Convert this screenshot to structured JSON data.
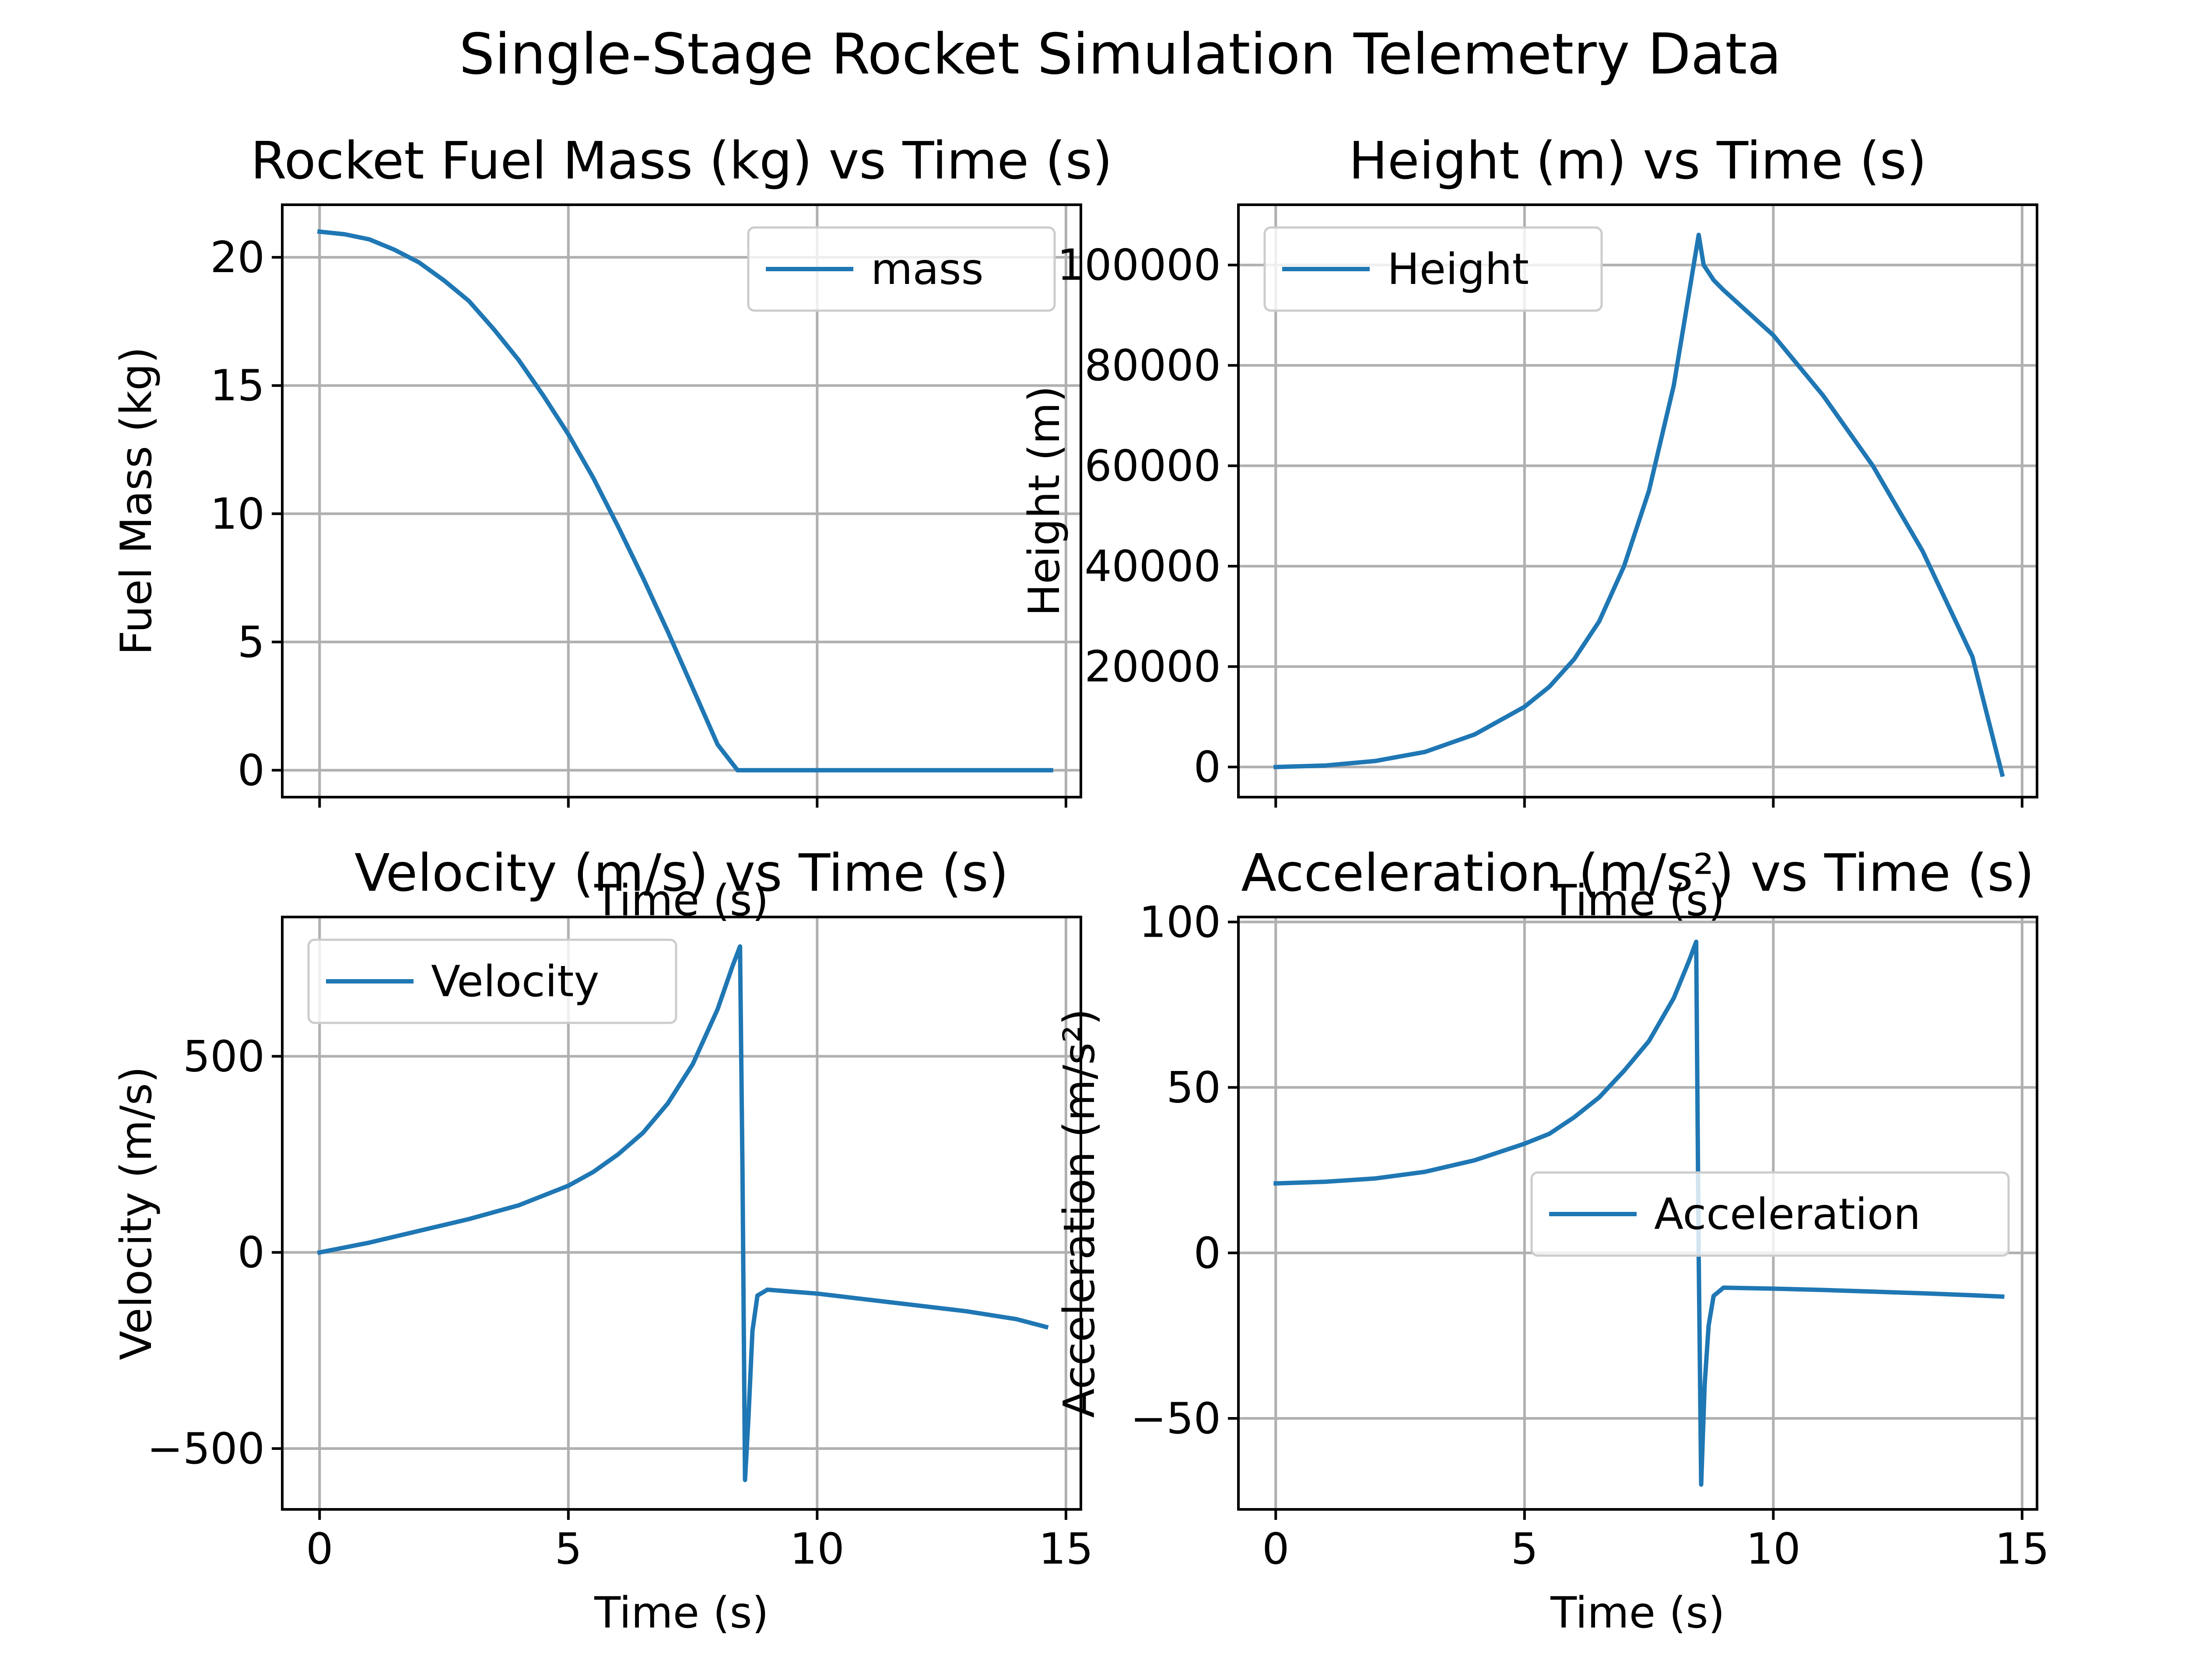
{
  "figure": {
    "suptitle": "Single-Stage Rocket Simulation Telemetry Data",
    "line_color": "#1f77b4"
  },
  "chart_data": [
    {
      "type": "line",
      "title": "Rocket Fuel Mass (kg) vs Time (s)",
      "xlabel": "Time (s)",
      "ylabel": "Fuel Mass (kg)",
      "xlim": [
        -0.75,
        15.3
      ],
      "ylim": [
        -1.05,
        22.05
      ],
      "xticks": [
        0,
        5,
        10,
        15
      ],
      "xticklabels": [
        "",
        "",
        "",
        ""
      ],
      "yticks": [
        0,
        5,
        10,
        15,
        20
      ],
      "yticklabels": [
        "0",
        "5",
        "10",
        "15",
        "20"
      ],
      "grid": true,
      "legend": "upper right",
      "series": [
        {
          "name": "mass",
          "x": [
            0,
            0.5,
            1,
            1.5,
            2,
            2.5,
            3,
            3.5,
            4,
            4.5,
            5,
            5.5,
            6,
            6.5,
            7,
            7.5,
            8,
            8.4,
            8.5,
            10,
            12,
            14,
            14.7
          ],
          "y": [
            21.0,
            20.9,
            20.7,
            20.3,
            19.8,
            19.1,
            18.3,
            17.2,
            16.0,
            14.6,
            13.1,
            11.4,
            9.5,
            7.5,
            5.4,
            3.2,
            1.0,
            0.0,
            0.0,
            0.0,
            0.0,
            0.0,
            0.0
          ]
        }
      ]
    },
    {
      "type": "line",
      "title": "Height (m) vs Time (s)",
      "xlabel": "Time (s)",
      "ylabel": "Height (m)",
      "xlim": [
        -0.75,
        15.3
      ],
      "ylim": [
        -6000,
        112000
      ],
      "xticks": [
        0,
        5,
        10,
        15
      ],
      "xticklabels": [
        "",
        "",
        "",
        ""
      ],
      "yticks": [
        0,
        20000,
        40000,
        60000,
        80000,
        100000
      ],
      "yticklabels": [
        "0",
        "20000",
        "40000",
        "60000",
        "80000",
        "100000"
      ],
      "grid": true,
      "legend": "upper left",
      "series": [
        {
          "name": "Height",
          "x": [
            0,
            1,
            2,
            3,
            4,
            5,
            5.5,
            6,
            6.5,
            7,
            7.5,
            8,
            8.2,
            8.4,
            8.5,
            8.6,
            8.8,
            9,
            10,
            11,
            12,
            13,
            14,
            14.6
          ],
          "y": [
            0,
            300,
            1200,
            3000,
            6500,
            12000,
            16000,
            21500,
            29000,
            40000,
            55000,
            76000,
            88000,
            100000,
            106000,
            100000,
            97000,
            95000,
            86000,
            74000,
            60000,
            43000,
            22000,
            -1500
          ]
        }
      ]
    },
    {
      "type": "line",
      "title": "Velocity (m/s) vs Time (s)",
      "xlabel": "Time (s)",
      "ylabel": "Velocity (m/s)",
      "xlim": [
        -0.75,
        15.3
      ],
      "ylim": [
        -655,
        855
      ],
      "xticks": [
        0,
        5,
        10,
        15
      ],
      "xticklabels": [
        "0",
        "5",
        "10",
        "15"
      ],
      "yticks": [
        -500,
        0,
        500
      ],
      "yticklabels": [
        "−500",
        "0",
        "500"
      ],
      "grid": true,
      "legend": "upper left",
      "series": [
        {
          "name": "Velocity",
          "x": [
            0,
            1,
            2,
            3,
            4,
            5,
            5.5,
            6,
            6.5,
            7,
            7.5,
            8,
            8.3,
            8.45,
            8.5,
            8.55,
            8.62,
            8.7,
            8.8,
            9,
            10,
            11,
            12,
            13,
            14,
            14.6
          ],
          "y": [
            0,
            25,
            55,
            85,
            120,
            170,
            205,
            250,
            305,
            380,
            480,
            620,
            730,
            780,
            200,
            -580,
            -420,
            -200,
            -110,
            -95,
            -105,
            -120,
            -135,
            -150,
            -170,
            -190
          ]
        }
      ]
    },
    {
      "type": "line",
      "title": "Acceleration (m/s²) vs Time (s)",
      "xlabel": "Time (s)",
      "ylabel": "Acceleration (m/s²)",
      "xlim": [
        -0.75,
        15.3
      ],
      "ylim": [
        -77.5,
        101.5
      ],
      "xticks": [
        0,
        5,
        10,
        15
      ],
      "xticklabels": [
        "0",
        "5",
        "10",
        "15"
      ],
      "yticks": [
        -50,
        0,
        50,
        100
      ],
      "yticklabels": [
        "−50",
        "0",
        "50",
        "100"
      ],
      "grid": true,
      "legend": "center right",
      "series": [
        {
          "name": "Acceleration",
          "x": [
            0,
            1,
            2,
            3,
            4,
            5,
            5.5,
            6,
            6.5,
            7,
            7.5,
            8,
            8.3,
            8.45,
            8.5,
            8.55,
            8.62,
            8.7,
            8.8,
            9,
            10,
            11,
            12,
            13,
            14,
            14.6
          ],
          "y": [
            21,
            21.5,
            22.5,
            24.5,
            28,
            33,
            36,
            41,
            47,
            55,
            64,
            77,
            88,
            94,
            0,
            -70,
            -40,
            -22,
            -13,
            -10.5,
            -10.8,
            -11.2,
            -11.7,
            -12.2,
            -12.8,
            -13.2
          ]
        }
      ]
    }
  ]
}
